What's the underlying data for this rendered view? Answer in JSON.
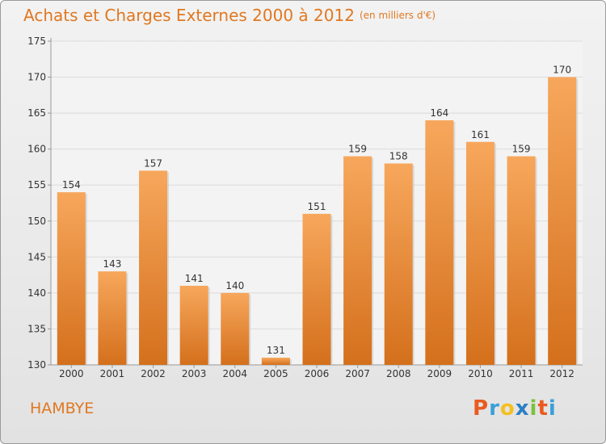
{
  "header": {
    "title": "Achats et Charges Externes 2000 à 2012",
    "subtitle": "(en milliers d'€)"
  },
  "footer": {
    "place": "HAMBYE",
    "logo": "Proxiti"
  },
  "colors": {
    "accent": "#e07820",
    "bar_top": "#f7a75c",
    "bar_bottom": "#d4701c",
    "logo_p": "#e85b20",
    "logo_r": "#3aa0d8",
    "logo_o": "#f4c020",
    "logo_x": "#2b7fc4",
    "logo_i": "#7cc040",
    "logo_t": "#e85b20",
    "logo_i2": "#3aa0d8"
  },
  "chart_data": {
    "type": "bar",
    "categories": [
      "2000",
      "2001",
      "2002",
      "2003",
      "2004",
      "2005",
      "2006",
      "2007",
      "2008",
      "2009",
      "2010",
      "2011",
      "2012"
    ],
    "values": [
      154,
      143,
      157,
      141,
      140,
      131,
      151,
      159,
      158,
      164,
      161,
      159,
      170
    ],
    "title": "Achats et Charges Externes 2000 à 2012",
    "xlabel": "",
    "ylabel": "",
    "ylim": [
      130,
      175
    ],
    "yticks": [
      130,
      135,
      140,
      145,
      150,
      155,
      160,
      165,
      170,
      175
    ],
    "grid": true,
    "data_labels": true
  }
}
